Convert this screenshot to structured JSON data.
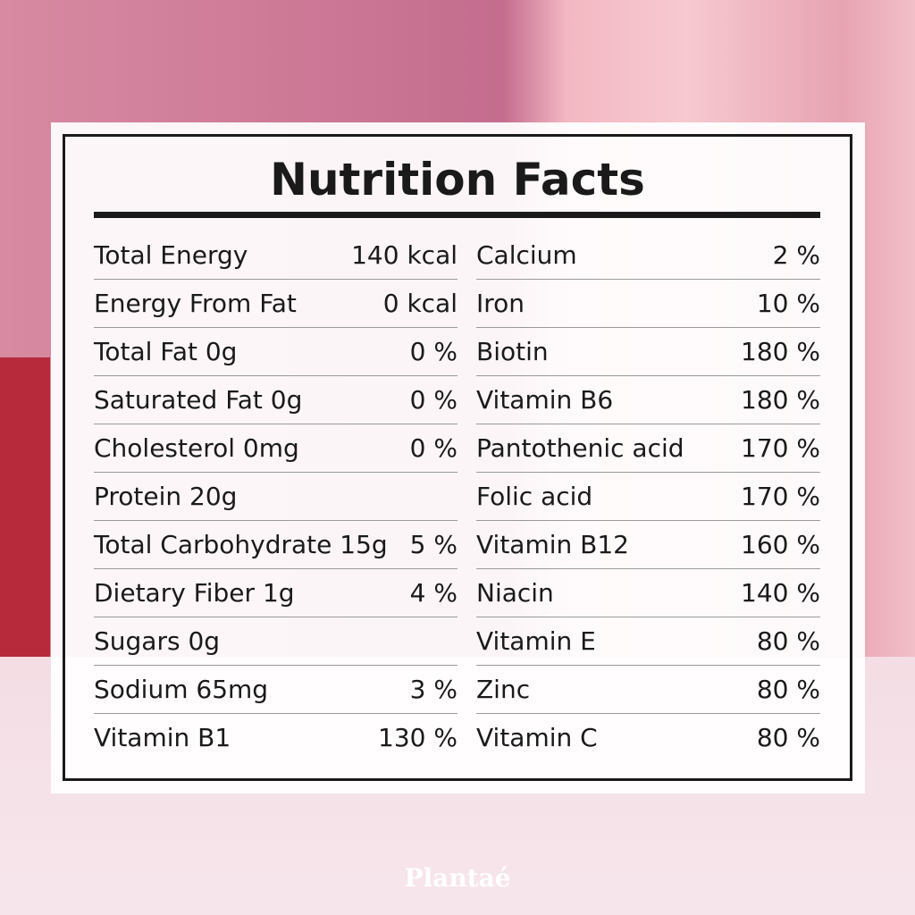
{
  "title": "Nutrition Facts",
  "left_rows": [
    {
      "label": "Total Energy",
      "value": "140 kcal"
    },
    {
      "label": "Energy From Fat",
      "value": "0 kcal"
    },
    {
      "label": "Total Fat 0g",
      "value": "0 %"
    },
    {
      "label": "Saturated Fat 0g",
      "value": "0 %"
    },
    {
      "label": "Cholesterol 0mg",
      "value": "0 %"
    },
    {
      "label": "Protein 20g"
    },
    {
      "label": "Total Carbohydrate 15g",
      "value": "5 %"
    },
    {
      "label": "Dietary Fiber 1g",
      "value": "4 %"
    },
    {
      "label": "Sugars 0g"
    },
    {
      "label": "Sodium 65mg",
      "value": "3 %"
    },
    {
      "label": "Vitamin B1",
      "value": "130 %"
    }
  ],
  "right_rows": [
    {
      "label": "Calcium",
      "value": "2 %"
    },
    {
      "label": "Iron",
      "value": "10 %"
    },
    {
      "label": "Biotin",
      "value": "180 %"
    },
    {
      "label": "Vitamin B6",
      "value": "180 %"
    },
    {
      "label": "Pantothenic acid",
      "value": "170 %"
    },
    {
      "label": "Folic acid",
      "value": "170 %"
    },
    {
      "label": "Vitamin B12",
      "value": "160 %"
    },
    {
      "label": "Niacin",
      "value": "140 %"
    },
    {
      "label": "Vitamin E",
      "value": "80 %"
    },
    {
      "label": "Zinc",
      "value": "80 %"
    },
    {
      "label": "Vitamin C",
      "value": "80 %"
    }
  ],
  "brand": "Plantaé"
}
